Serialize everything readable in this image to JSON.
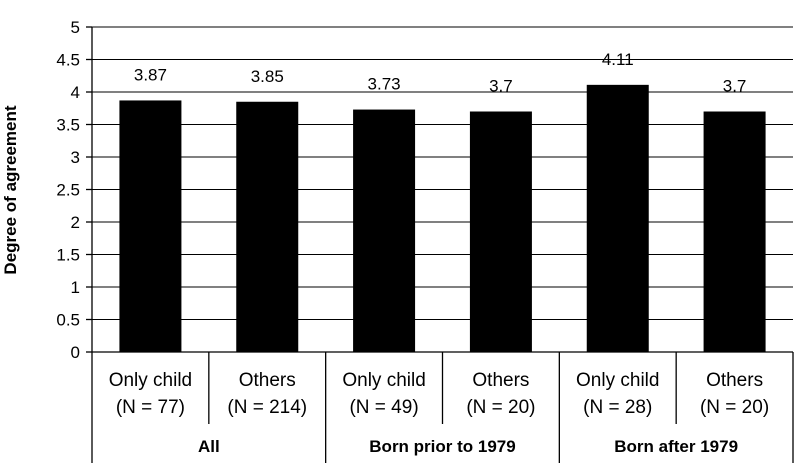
{
  "chart_data": {
    "type": "bar",
    "ylabel": "Degree of agreement",
    "ylim": [
      0,
      5
    ],
    "y_ticks": [
      "0",
      "0.5",
      "1",
      "1.5",
      "2",
      "2.5",
      "3",
      "3.5",
      "4",
      "4.5",
      "5"
    ],
    "grid": true,
    "bar_color": "#000000",
    "categories": [
      {
        "line1": "Only child",
        "line2": "(N = 77)"
      },
      {
        "line1": "Others",
        "line2": "(N = 214)"
      },
      {
        "line1": "Only child",
        "line2": "(N = 49)"
      },
      {
        "line1": "Others",
        "line2": "(N = 20)"
      },
      {
        "line1": "Only child",
        "line2": "(N = 28)"
      },
      {
        "line1": "Others",
        "line2": "(N = 20)"
      }
    ],
    "values": [
      3.87,
      3.85,
      3.73,
      3.7,
      4.11,
      3.7
    ],
    "value_labels": [
      "3.87",
      "3.85",
      "3.73",
      "3.7",
      "4.11",
      "3.7"
    ],
    "groups": [
      {
        "label": "All",
        "span": 2
      },
      {
        "label": "Born prior to 1979",
        "span": 2
      },
      {
        "label": "Born after 1979",
        "span": 2
      }
    ]
  }
}
